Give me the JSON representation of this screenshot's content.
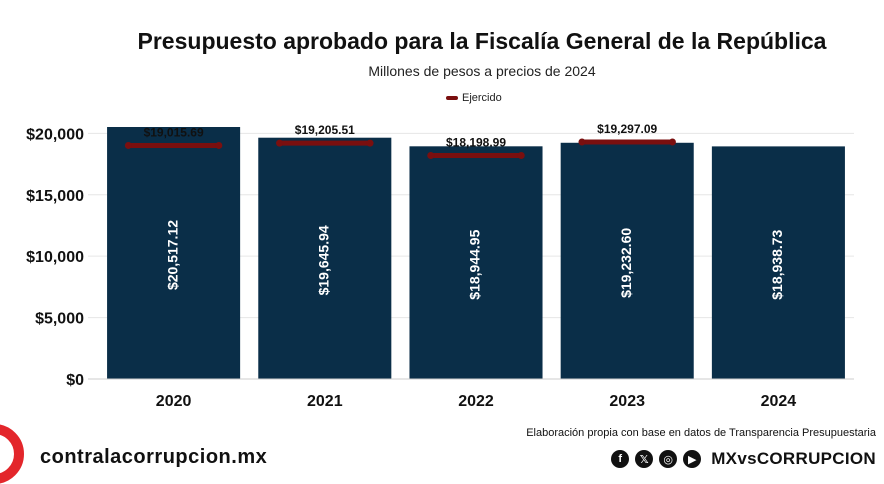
{
  "chart_data": {
    "type": "bar",
    "title": "Presupuesto aprobado para la Fiscalía General de la República",
    "subtitle": "Millones de pesos a precios de 2024",
    "legend": {
      "label": "Ejercido",
      "position": "top-center"
    },
    "categories": [
      "2020",
      "2021",
      "2022",
      "2023",
      "2024"
    ],
    "series": [
      {
        "name": "Aprobado",
        "values": [
          20517.12,
          19645.94,
          18944.95,
          19232.6,
          18938.73
        ],
        "labels": [
          "$20,517.12",
          "$19,645.94",
          "$18,944.95",
          "$19,232.60",
          "$18,938.73"
        ]
      },
      {
        "name": "Ejercido",
        "values": [
          19015.69,
          19205.51,
          18198.99,
          19297.09,
          null
        ],
        "labels": [
          "$19,015.69",
          "$19,205.51",
          "$18,198.99",
          "$19,297.09",
          ""
        ]
      }
    ],
    "yticks": [
      {
        "value": 0,
        "label": "$0"
      },
      {
        "value": 5000,
        "label": "$5,000"
      },
      {
        "value": 10000,
        "label": "$10,000"
      },
      {
        "value": 15000,
        "label": "$15,000"
      },
      {
        "value": 20000,
        "label": "$20,000"
      }
    ],
    "ylim": [
      0,
      20517.12
    ],
    "grid": true,
    "colors": {
      "bar": "#0a2e48",
      "ejercido": "#7a0f0f",
      "bar_label": "#ffffff"
    }
  },
  "source": "Elaboración propia con base en datos de Transparencia Presupuestaria",
  "footer": {
    "site": "contralacorrupcion.mx",
    "handle": "MXvsCORRUPCION",
    "social_icons": [
      "facebook-icon",
      "x-icon",
      "instagram-icon",
      "youtube-icon"
    ],
    "brand_color": "#e3262b"
  }
}
